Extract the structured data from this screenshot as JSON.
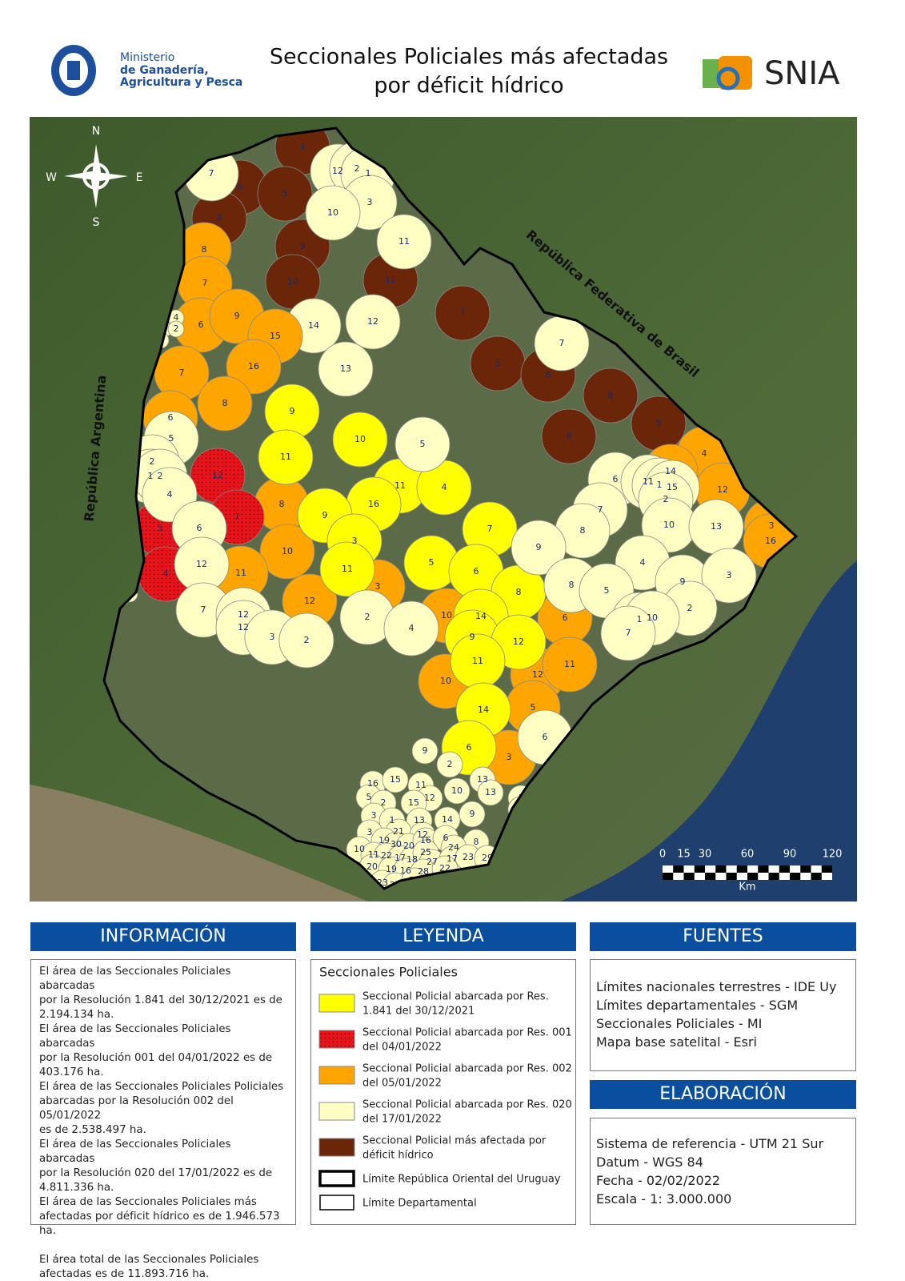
{
  "header": {
    "ministry": [
      "Ministerio",
      "de Ganadería,",
      "Agricultura y Pesca"
    ],
    "title": [
      "Seccionales Policiales más afectadas",
      "por déficit hídrico"
    ],
    "brand": "SNIA"
  },
  "map": {
    "compass": {
      "n": "N",
      "s": "S",
      "e": "E",
      "w": "W"
    },
    "countries": [
      "República Argentina",
      "República Federativa de Brasil"
    ],
    "scale": {
      "ticks": [
        0,
        15,
        30,
        60,
        90,
        120
      ],
      "unit": "Km"
    },
    "regions": [
      {
        "color": "#6b2508",
        "labels": [
          "4",
          "6",
          "5",
          "8",
          "9",
          "10",
          "11",
          "3",
          "5",
          "6",
          "8",
          "8",
          "5"
        ]
      },
      {
        "color": "#ffffc4",
        "labels": [
          "7",
          "12",
          "2",
          "1",
          "3",
          "10",
          "11",
          "14",
          "12",
          "13",
          "7"
        ]
      },
      {
        "color": "#ffa500",
        "labels": [
          "8",
          "7",
          "6",
          "9",
          "15",
          "16",
          "7",
          "8",
          "6",
          "8",
          "10",
          "11",
          "12",
          "3",
          "10",
          "10",
          "6",
          "12",
          "11",
          "5",
          "3",
          "4",
          "14",
          "12",
          "3",
          "16"
        ]
      },
      {
        "color": "#e8141c",
        "labels": [
          "12",
          "7",
          "5",
          "4"
        ]
      },
      {
        "color": "#ffff00",
        "labels": [
          "9",
          "11",
          "10",
          "11",
          "4",
          "16",
          "9",
          "3",
          "11",
          "5",
          "7",
          "6",
          "8",
          "14",
          "9",
          "12",
          "11",
          "14",
          "6"
        ]
      },
      {
        "color": "#ffffc4",
        "labels": [
          "5",
          "2",
          "1",
          "2",
          "4",
          "6",
          "12",
          "5",
          "4",
          "1",
          "2",
          "3",
          "1",
          "2",
          "7",
          "12",
          "12",
          "3",
          "2",
          "5",
          "2",
          "4"
        ]
      },
      {
        "color": "#ffffc4",
        "labels": [
          "6",
          "11",
          "1",
          "15",
          "2",
          "7",
          "8",
          "10",
          "13",
          "9",
          "4",
          "9",
          "3",
          "8",
          "5",
          "2",
          "1",
          "10",
          "7",
          "6"
        ]
      },
      {
        "color": "#ffffc4",
        "labels": [
          "9",
          "2",
          "16",
          "15",
          "11",
          "12",
          "10",
          "13",
          "13",
          "5",
          "2",
          "15",
          "1",
          "4",
          "3",
          "1",
          "13",
          "14",
          "9",
          "3",
          "21",
          "12",
          "19",
          "30",
          "20",
          "16",
          "6",
          "8",
          "10",
          "11",
          "22",
          "17",
          "18",
          "25",
          "27",
          "24",
          "17",
          "23",
          "29",
          "20",
          "19",
          "16",
          "28",
          "22",
          "23",
          "24",
          "25"
        ]
      }
    ]
  },
  "panels": {
    "info": {
      "title": "INFORMACIÓN",
      "lines": [
        "El área de las Seccionales Policiales abarcadas",
        "por la Resolución 1.841 del 30/12/2021 es de",
        "2.194.134 ha.",
        "El área de las Seccionales Policiales abarcadas",
        "por la Resolución 001 del 04/01/2022 es de",
        "403.176 ha.",
        "El área de las Seccionales Policiales Policiales",
        "abarcadas por la Resolución 002 del 05/01/2022",
        "es de 2.538.497 ha.",
        "El área de las Seccionales Policiales abarcadas",
        "por la Resolución 020 del 17/01/2022  es de",
        "4.811.336 ha.",
        "El área de las Seccionales Policiales más",
        "afectadas por déficit hídrico es de 1.946.573 ha.",
        "El área total de las Seccionales Policiales",
        "afectadas es de 11.893.716 ha."
      ]
    },
    "legend": {
      "title": "LEYENDA",
      "subtitle": "Seccionales Policiales",
      "items": [
        {
          "color": "#ffff00",
          "lines": [
            "Seccional Policial abarcada por Res.",
            "1.841 del 30/12/2021"
          ]
        },
        {
          "color": "#e8141c",
          "lines": [
            "Seccional Policial abarcada por Res. 001",
            "del 04/01/2022"
          ]
        },
        {
          "color": "#ffa500",
          "lines": [
            "Seccional Policial abarcada por Res. 002",
            "del 05/01/2022"
          ]
        },
        {
          "color": "#ffffc4",
          "lines": [
            "Seccional Policial abarcada por Res. 020",
            "del 17/01/2022"
          ]
        },
        {
          "color": "#6b2508",
          "lines": [
            "Seccional Policial más afectada por",
            "déficit hídrico"
          ]
        }
      ],
      "borders": [
        "Límite República Oriental del Uruguay",
        "Límite Departamental"
      ]
    },
    "sources": {
      "title": "FUENTES",
      "lines": [
        "Límites nacionales terrestres - IDE Uy",
        "Límites departamentales - SGM",
        "Seccionales Policiales - MI",
        "Mapa base satelital - Esri"
      ]
    },
    "credits": {
      "title": "ELABORACIÓN",
      "lines": [
        "Sistema de referencia - UTM 21 Sur",
        "Datum - WGS 84",
        "Fecha - 02/02/2022",
        "Escala - 1: 3.000.000"
      ]
    }
  }
}
